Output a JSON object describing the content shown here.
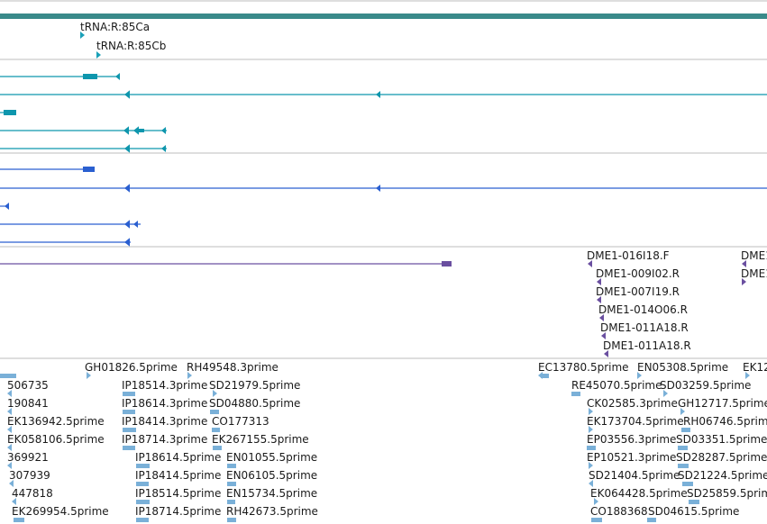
{
  "colors": {
    "scale_bar": "#3a8a8a",
    "trna": "#1aa0b8",
    "gene_teal": "#0e96ad",
    "gene_blue": "#2a5fd0",
    "insertion": "#6a4fa0",
    "est": "#7ab0d8",
    "separator": "#bdbdbd"
  },
  "tracks": {
    "trna": {
      "labels": [
        "tRNA:R:85Ca",
        "tRNA:R:85Cb"
      ]
    },
    "insertions": {
      "labels": [
        "DME1-016I18.F",
        "DME1-009I02.R",
        "DME1-007I19.R",
        "DME1-014O06.R",
        "DME1-011A18.R",
        "DME1-011A18.R",
        "DME1",
        "DME1"
      ]
    },
    "ests": {
      "labels": [
        "GH01826.5prime",
        "RH49548.3prime",
        "EC13780.5prime",
        "EN05308.5prime",
        "EK12",
        "506735",
        "IP18514.3prime",
        "SD21979.5prime",
        "RE45070.5prime",
        "SD03259.5prime",
        "190841",
        "IP18614.3prime",
        "SD04880.5prime",
        "CK02585.3prime",
        "GH12717.5prime",
        "EK136942.5prime",
        "IP18414.3prime",
        "CO177313",
        "EK173704.5prime",
        "RH06746.5prime",
        "EK058106.5prime",
        "IP18714.3prime",
        "EK267155.5prime",
        "EP03556.3prime",
        "SD03351.5prime",
        "369921",
        "IP18614.5prime",
        "EN01055.5prime",
        "EP10521.3prime",
        "SD28287.5prime",
        "307939",
        "IP18414.5prime",
        "EN06105.5prime",
        "SD21404.5prime",
        "SD21224.5prime",
        "447818",
        "IP18514.5prime",
        "EN15734.5prime",
        "EK064428.5prime",
        "SD25859.5prime",
        "EK269954.5prime",
        "IP18714.5prime",
        "RH42673.5prime",
        "CO188368",
        "SD04615.5prime"
      ]
    }
  }
}
